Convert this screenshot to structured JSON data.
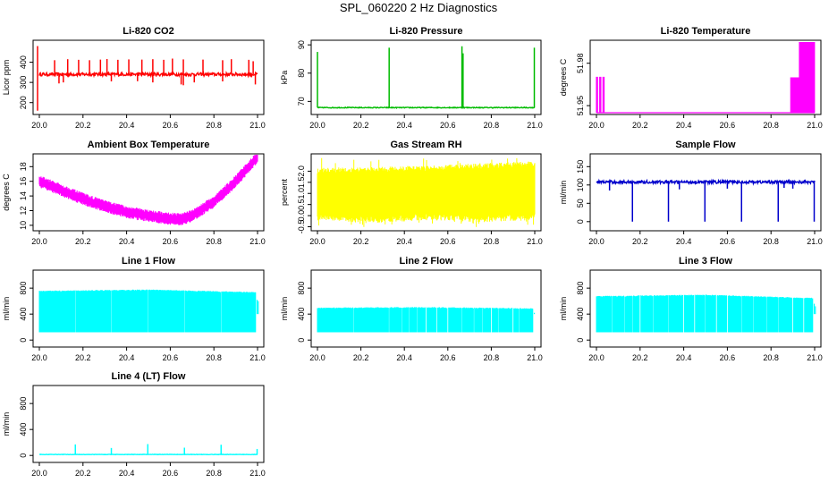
{
  "figure": {
    "title": "SPL_060220  2 Hz Diagnostics"
  },
  "chart_data": [
    {
      "id": "co2",
      "type": "line",
      "title": "Li-820 CO2",
      "ylabel": "Licor ppm",
      "color": "#ff0000",
      "xlim": [
        20.0,
        21.0
      ],
      "ylim": [
        150,
        500
      ],
      "xticks": [
        20.0,
        20.2,
        20.4,
        20.6,
        20.8,
        21.0
      ],
      "xtick_labels": [
        "20.0",
        "20.2",
        "20.4",
        "20.6",
        "20.8",
        "21.0"
      ],
      "yticks": [
        200,
        300,
        400
      ],
      "ytick_labels": [
        "200",
        "300",
        "400"
      ],
      "baseline": 340,
      "noise": 8,
      "spikes_up": [
        [
          20.07,
          410
        ],
        [
          20.13,
          415
        ],
        [
          20.18,
          412
        ],
        [
          20.23,
          410
        ],
        [
          20.28,
          413
        ],
        [
          20.31,
          416
        ],
        [
          20.36,
          412
        ],
        [
          20.41,
          414
        ],
        [
          20.47,
          413
        ],
        [
          20.52,
          415
        ],
        [
          20.57,
          412
        ],
        [
          20.61,
          418
        ],
        [
          20.66,
          414
        ],
        [
          20.75,
          413
        ],
        [
          20.84,
          410
        ],
        [
          20.88,
          415
        ],
        [
          20.96,
          412
        ],
        [
          20.98,
          405
        ]
      ],
      "spikes_down": [
        [
          20.09,
          295
        ],
        [
          20.11,
          300
        ],
        [
          20.33,
          305
        ],
        [
          20.45,
          306
        ],
        [
          20.52,
          300
        ],
        [
          20.65,
          290
        ],
        [
          20.66,
          286
        ],
        [
          20.71,
          300
        ],
        [
          20.84,
          305
        ],
        [
          20.99,
          290
        ]
      ],
      "edge_spike": [
        [
          20.0,
          160
        ],
        [
          20.0,
          480
        ]
      ]
    },
    {
      "id": "pressure",
      "type": "line",
      "title": "Li-820 Pressure",
      "ylabel": "kPa",
      "color": "#00bb00",
      "xlim": [
        20.0,
        21.0
      ],
      "ylim": [
        66,
        91
      ],
      "xticks": [
        20.0,
        20.2,
        20.4,
        20.6,
        20.8,
        21.0
      ],
      "xtick_labels": [
        "20.0",
        "20.2",
        "20.4",
        "20.6",
        "20.8",
        "21.0"
      ],
      "yticks": [
        70,
        80,
        90
      ],
      "ytick_labels": [
        "70",
        "80",
        "90"
      ],
      "baseline": 67.8,
      "noise": 0.15,
      "spikes_up": [
        [
          20.0,
          87.5
        ],
        [
          20.33,
          89
        ],
        [
          20.665,
          89.5
        ],
        [
          20.67,
          87
        ],
        [
          20.998,
          89
        ]
      ],
      "spikes_down": [],
      "edge_spike": []
    },
    {
      "id": "licor-temp",
      "type": "step",
      "title": "Li-820 Temperature",
      "ylabel": "degrees C",
      "color": "#ff00ff",
      "xlim": [
        20.0,
        21.0
      ],
      "ylim": [
        51.945,
        51.995
      ],
      "xticks": [
        20.0,
        20.2,
        20.4,
        20.6,
        20.8,
        21.0
      ],
      "xtick_labels": [
        "20.0",
        "20.2",
        "20.4",
        "20.6",
        "20.8",
        "21.0"
      ],
      "yticks": [
        51.95,
        51.98
      ],
      "ytick_labels": [
        "51.95",
        "51.98"
      ],
      "low": 51.945,
      "mid": 51.97,
      "high": 51.995,
      "pulses": [
        [
          20.0,
          20.005,
          "mid"
        ],
        [
          20.015,
          20.02,
          "mid"
        ],
        [
          20.03,
          20.035,
          "mid"
        ]
      ],
      "dense_mid": [
        20.89,
        20.95
      ],
      "dense_high": [
        20.93,
        21.0
      ]
    },
    {
      "id": "box-temp",
      "type": "band",
      "title": "Ambient Box Temperature",
      "ylabel": "degrees C",
      "color": "#ff00ff",
      "xlim": [
        20.0,
        21.0
      ],
      "ylim": [
        9.5,
        19.5
      ],
      "xticks": [
        20.0,
        20.2,
        20.4,
        20.6,
        20.8,
        21.0
      ],
      "xtick_labels": [
        "20.0",
        "20.2",
        "20.4",
        "20.6",
        "20.8",
        "21.0"
      ],
      "yticks": [
        10,
        12,
        14,
        16,
        18
      ],
      "ytick_labels": [
        "10",
        "12",
        "14",
        "16",
        "18"
      ],
      "x": [
        20.0,
        20.1,
        20.2,
        20.3,
        20.4,
        20.5,
        20.6,
        20.65,
        20.7,
        20.8,
        20.9,
        21.0
      ],
      "center": [
        16.0,
        14.8,
        13.6,
        12.6,
        11.8,
        11.3,
        10.9,
        10.8,
        11.3,
        13.2,
        16.0,
        19.3
      ],
      "half_width": 0.7
    },
    {
      "id": "rh",
      "type": "band",
      "title": "Gas Stream RH",
      "ylabel": "percent",
      "color": "#ffff00",
      "xlim": [
        20.0,
        21.0
      ],
      "ylim": [
        -0.6,
        2.7
      ],
      "xticks": [
        20.0,
        20.2,
        20.4,
        20.6,
        20.8,
        21.0
      ],
      "xtick_labels": [
        "20.0",
        "20.2",
        "20.4",
        "20.6",
        "20.8",
        "21.0"
      ],
      "yticks": [
        -0.5,
        0.0,
        0.5,
        1.0,
        1.5,
        2.0
      ],
      "ytick_labels": [
        "-0.5",
        "0.0",
        "0.5",
        "1.0",
        "1.5",
        "2.0"
      ],
      "x": [
        20.0,
        20.25,
        20.5,
        20.75,
        21.0
      ],
      "upper": [
        2.15,
        2.2,
        2.25,
        2.35,
        2.45
      ],
      "lower": [
        -0.2,
        -0.35,
        -0.2,
        -0.3,
        -0.2
      ],
      "spike_min": -0.55,
      "spike_max": 2.6
    },
    {
      "id": "sample-flow",
      "type": "line",
      "title": "Sample Flow",
      "ylabel": "ml/min",
      "color": "#0000cc",
      "xlim": [
        20.0,
        21.0
      ],
      "ylim": [
        -20,
        180
      ],
      "xticks": [
        20.0,
        20.2,
        20.4,
        20.6,
        20.8,
        21.0
      ],
      "xtick_labels": [
        "20.0",
        "20.2",
        "20.4",
        "20.6",
        "20.8",
        "21.0"
      ],
      "yticks": [
        0,
        50,
        100,
        150
      ],
      "ytick_labels": [
        "0",
        "50",
        "100",
        "150"
      ],
      "baseline": 108,
      "noise": 4,
      "spikes_up": [],
      "spikes_down": [
        [
          20.165,
          0
        ],
        [
          20.33,
          0
        ],
        [
          20.497,
          0
        ],
        [
          20.665,
          0
        ],
        [
          20.833,
          0
        ],
        [
          20.998,
          0
        ],
        [
          20.06,
          85
        ],
        [
          20.38,
          88
        ],
        [
          20.6,
          90
        ],
        [
          20.86,
          92
        ],
        [
          20.9,
          90
        ]
      ],
      "edge_spike": []
    },
    {
      "id": "line1-flow",
      "type": "block",
      "title": "Line 1 Flow",
      "ylabel": "ml/min",
      "color": "#00ffff",
      "xlim": [
        20.0,
        21.0
      ],
      "ylim": [
        -80,
        1050
      ],
      "xticks": [
        20.0,
        20.2,
        20.4,
        20.6,
        20.8,
        21.0
      ],
      "xtick_labels": [
        "20.0",
        "20.2",
        "20.4",
        "20.6",
        "20.8",
        "21.0"
      ],
      "yticks": [
        0,
        400,
        800
      ],
      "ytick_labels": [
        "0",
        "400",
        "800"
      ],
      "low": 120,
      "x": [
        20.0,
        20.5,
        21.0
      ],
      "top": [
        760,
        780,
        740
      ],
      "gaps": [
        20.165,
        20.33,
        20.497,
        20.665,
        20.833
      ],
      "tail": [
        [
          20.99,
          620
        ],
        [
          20.995,
          600
        ]
      ]
    },
    {
      "id": "line2-flow",
      "type": "block",
      "title": "Line 2 Flow",
      "ylabel": "ml/min",
      "color": "#00ffff",
      "xlim": [
        20.0,
        21.0
      ],
      "ylim": [
        -80,
        1050
      ],
      "xticks": [
        20.0,
        20.2,
        20.4,
        20.6,
        20.8,
        21.0
      ],
      "xtick_labels": [
        "20.0",
        "20.2",
        "20.4",
        "20.6",
        "20.8",
        "21.0"
      ],
      "yticks": [
        0,
        400,
        800
      ],
      "ytick_labels": [
        "0",
        "400",
        "800"
      ],
      "low": 120,
      "x": [
        20.0,
        20.5,
        21.0
      ],
      "top": [
        500,
        510,
        490
      ],
      "gaps": [
        20.165,
        20.33,
        20.39,
        20.42,
        20.46,
        20.5,
        20.55,
        20.6,
        20.665,
        20.72,
        20.76,
        20.8,
        20.833,
        20.9,
        20.93
      ],
      "tail": [
        [
          20.99,
          420
        ],
        [
          20.995,
          400
        ]
      ]
    },
    {
      "id": "line3-flow",
      "type": "block",
      "title": "Line 3 Flow",
      "ylabel": "ml/min",
      "color": "#00ffff",
      "xlim": [
        20.0,
        21.0
      ],
      "ylim": [
        -80,
        1050
      ],
      "xticks": [
        20.0,
        20.2,
        20.4,
        20.6,
        20.8,
        21.0
      ],
      "xtick_labels": [
        "20.0",
        "20.2",
        "20.4",
        "20.6",
        "20.8",
        "21.0"
      ],
      "yticks": [
        0,
        400,
        800
      ],
      "ytick_labels": [
        "0",
        "400",
        "800"
      ],
      "low": 120,
      "x": [
        20.0,
        20.5,
        21.0
      ],
      "top": [
        680,
        700,
        650
      ],
      "gaps": [
        20.07,
        20.13,
        20.165,
        20.2,
        20.26,
        20.33,
        20.4,
        20.45,
        20.497,
        20.55,
        20.6,
        20.665,
        20.72,
        20.78,
        20.833,
        20.9,
        20.95
      ],
      "tail": [
        [
          20.99,
          560
        ],
        [
          20.995,
          520
        ]
      ]
    },
    {
      "id": "line4-flow",
      "type": "line",
      "title": "Line 4 (LT) Flow",
      "ylabel": "ml/min",
      "color": "#00ffff",
      "xlim": [
        20.0,
        21.0
      ],
      "ylim": [
        -80,
        1050
      ],
      "xticks": [
        20.0,
        20.2,
        20.4,
        20.6,
        20.8,
        21.0
      ],
      "xtick_labels": [
        "20.0",
        "20.2",
        "20.4",
        "20.6",
        "20.8",
        "21.0"
      ],
      "yticks": [
        0,
        400,
        800
      ],
      "ytick_labels": [
        "0",
        "400",
        "800"
      ],
      "baseline": 15,
      "noise": 3,
      "spikes_up": [
        [
          20.165,
          170
        ],
        [
          20.33,
          115
        ],
        [
          20.497,
          175
        ],
        [
          20.665,
          120
        ],
        [
          20.833,
          165
        ],
        [
          20.998,
          100
        ]
      ],
      "spikes_down": [],
      "edge_spike": []
    }
  ]
}
